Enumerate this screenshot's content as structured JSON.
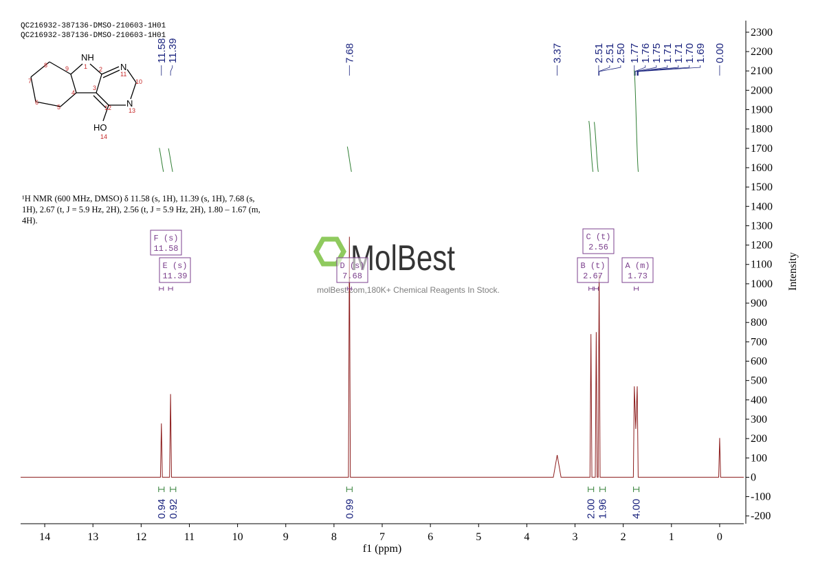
{
  "chart_data": {
    "type": "line",
    "header_lines": [
      "QC216932-387136-DMSO-210603-1H01",
      "QC216932-387136-DMSO-210603-1H01"
    ],
    "description": [
      "¹H NMR (600 MHz, DMSO) δ 11.58 (s, 1H), 11.39 (s, 1H), 7.68 (s,",
      "1H), 2.67 (t, J = 5.9 Hz, 2H), 2.56 (t, J = 5.9 Hz, 2H), 1.80 – 1.67 (m,",
      "4H)."
    ],
    "watermark": {
      "logo": "MolBest",
      "tagline": "molBest.com,180K+ Chemical Reagents In Stock."
    },
    "structure": {
      "atoms": [
        "NH",
        "1",
        "2",
        "N",
        "11",
        "10",
        "N",
        "13",
        "12",
        "HO",
        "14",
        "3",
        "4",
        "5",
        "6",
        "7",
        "8",
        "9"
      ]
    },
    "x_label": "f1 (ppm)",
    "y_label": "Intensity",
    "xlim": [
      14.5,
      -0.5
    ],
    "xticks": [
      14,
      13,
      12,
      11,
      10,
      9,
      8,
      7,
      6,
      5,
      4,
      3,
      2,
      1,
      0
    ],
    "ylim": [
      -240,
      2360
    ],
    "yticks": [
      -200,
      -100,
      0,
      100,
      200,
      300,
      400,
      500,
      600,
      700,
      800,
      900,
      1000,
      1100,
      1200,
      1300,
      1400,
      1500,
      1600,
      1700,
      1800,
      1900,
      2000,
      2100,
      2200,
      2300
    ],
    "series": [
      {
        "color": "#8b1a1a",
        "x": [
          14.5,
          11.6,
          11.58,
          11.56,
          11.41,
          11.39,
          11.37,
          7.7,
          7.68,
          7.66,
          3.45,
          3.37,
          3.29,
          2.69,
          2.67,
          2.65,
          2.58,
          2.56,
          2.54,
          2.52,
          2.5,
          2.48,
          1.79,
          1.77,
          1.74,
          1.71,
          1.69,
          0.02,
          0,
          -0.02,
          -0.5
        ],
        "values": [
          0,
          0,
          278,
          0,
          0,
          430,
          0,
          0,
          1243,
          0,
          0,
          115,
          0,
          0,
          740,
          0,
          0,
          750,
          0,
          0,
          1047,
          0,
          0,
          470,
          250,
          470,
          0,
          0,
          203,
          0,
          0
        ]
      }
    ],
    "peak_labels": {
      "values": [
        11.58,
        11.39,
        7.68,
        3.37,
        2.51,
        2.51,
        2.5,
        1.77,
        1.76,
        1.75,
        1.71,
        1.71,
        1.7,
        1.69,
        0
      ],
      "value_labels": [
        "11.58",
        "11.39",
        "7.68",
        "3.37",
        "2.51",
        "2.51",
        "2.50",
        "1.77",
        "1.76",
        "1.75",
        "1.71",
        "1.71",
        "1.70",
        "1.69",
        "0.00"
      ]
    },
    "integrals": {
      "x": [
        11.58,
        11.39,
        7.68,
        2.67,
        2.56,
        1.73
      ],
      "values": [
        0.94,
        0.92,
        0.99,
        2.0,
        1.96,
        4.0
      ],
      "value_labels": [
        "0.94",
        "0.92",
        "0.99",
        "2.00",
        "1.96",
        "4.00"
      ]
    },
    "multiplets": [
      {
        "label": "F (s)",
        "shift": 11.58
      },
      {
        "label": "E (s)",
        "shift": 11.39
      },
      {
        "label": "D (s)",
        "shift": 7.68
      },
      {
        "label": "C (t)",
        "shift": 2.56
      },
      {
        "label": "B (t)",
        "shift": 2.67
      },
      {
        "label": "A (m)",
        "shift": 1.73
      }
    ]
  }
}
